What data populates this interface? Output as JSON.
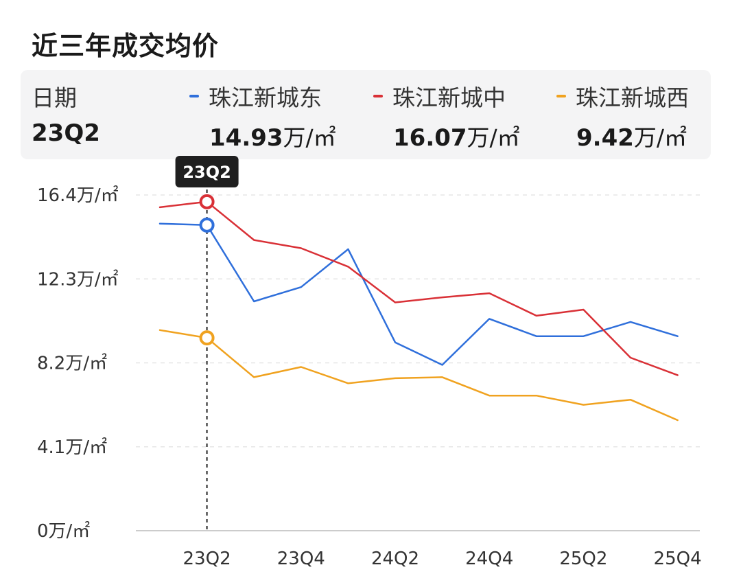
{
  "title": "近三年成交均价",
  "header": {
    "date_label": "日期",
    "date_value": "23Q2",
    "unit": "万/㎡",
    "series": [
      {
        "name": "珠江新城东",
        "value": "14.93",
        "color": "#2f6fdb"
      },
      {
        "name": "珠江新城中",
        "value": "16.07",
        "color": "#d93036"
      },
      {
        "name": "珠江新城西",
        "value": "9.42",
        "color": "#f0a21f"
      }
    ]
  },
  "tooltip": {
    "label": "23Q2"
  },
  "chart_data": {
    "type": "line",
    "x": [
      "23Q1",
      "23Q2",
      "23Q3",
      "23Q4",
      "24Q1",
      "24Q2",
      "24Q3",
      "24Q4",
      "25Q1",
      "25Q2",
      "25Q3",
      "25Q4"
    ],
    "x_tick_labels": [
      "23Q2",
      "23Q4",
      "24Q2",
      "24Q4",
      "25Q2",
      "25Q4"
    ],
    "y_tick_labels": [
      "16.4万/㎡",
      "12.3万/㎡",
      "8.2万/㎡",
      "4.1万/㎡",
      "0万/㎡"
    ],
    "y_ticks": [
      16.4,
      12.3,
      8.2,
      4.1,
      0
    ],
    "ylim": [
      0,
      16.4
    ],
    "grid": true,
    "highlight_index": 1,
    "series": [
      {
        "name": "珠江新城东",
        "color": "#2f6fdb",
        "values": [
          15.0,
          14.93,
          11.2,
          11.9,
          13.75,
          9.2,
          8.1,
          10.35,
          9.5,
          9.5,
          10.2,
          9.5
        ]
      },
      {
        "name": "珠江新城中",
        "color": "#d93036",
        "values": [
          15.8,
          16.07,
          14.2,
          13.8,
          12.9,
          11.15,
          11.4,
          11.6,
          10.5,
          10.8,
          8.45,
          7.6
        ]
      },
      {
        "name": "珠江新城西",
        "color": "#f0a21f",
        "values": [
          9.8,
          9.42,
          7.5,
          8.0,
          7.2,
          7.45,
          7.5,
          6.6,
          6.6,
          6.15,
          6.4,
          5.4
        ]
      }
    ]
  }
}
